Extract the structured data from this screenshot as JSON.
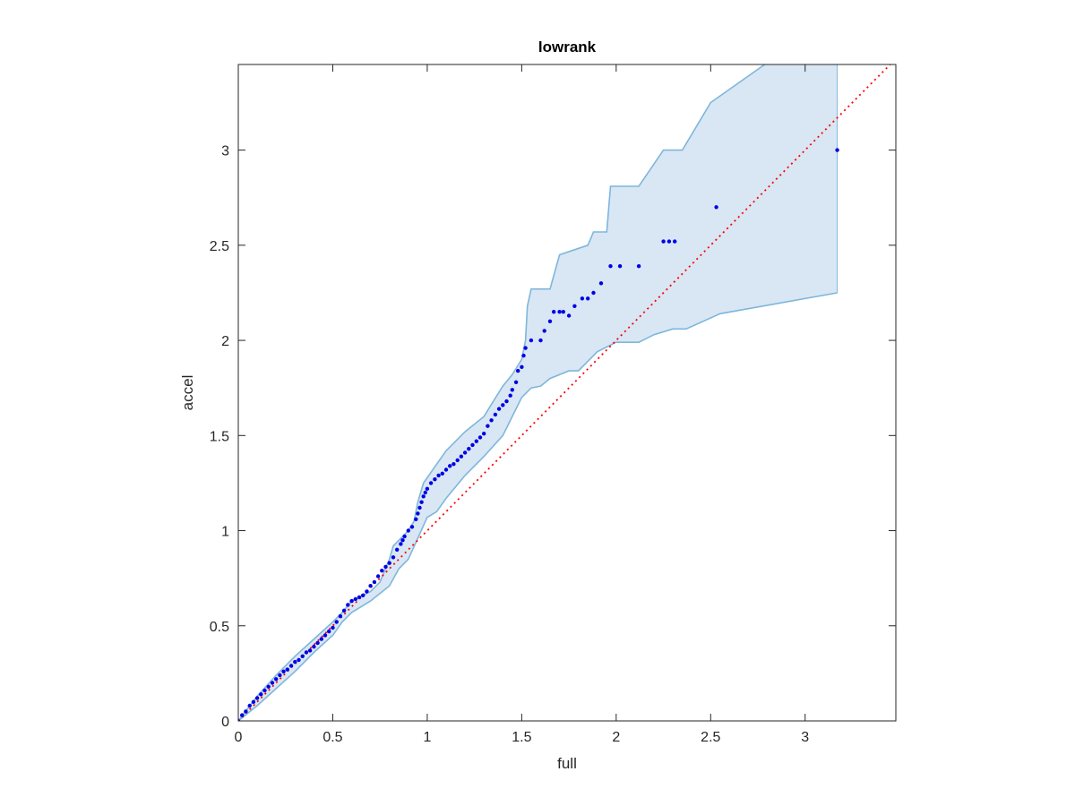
{
  "chart_data": {
    "type": "scatter",
    "title": "lowrank",
    "xlabel": "full",
    "ylabel": "accel",
    "xlim": [
      0,
      3.48
    ],
    "ylim": [
      0,
      3.45
    ],
    "xticks": [
      0,
      0.5,
      1,
      1.5,
      2,
      2.5,
      3
    ],
    "yticks": [
      0,
      0.5,
      1,
      1.5,
      2,
      2.5,
      3
    ],
    "xtick_labels": [
      "0",
      "0.5",
      "1",
      "1.5",
      "2",
      "2.5",
      "3"
    ],
    "ytick_labels": [
      "0",
      "0.5",
      "1",
      "1.5",
      "2",
      "2.5",
      "3"
    ],
    "grid": false,
    "colors": {
      "points": "#0000e6",
      "band_fill": "#d8e7f3",
      "band_edge": "#7fb6dc",
      "reference_line": "#ff0000",
      "axes": "#262626"
    },
    "reference_line": {
      "style": "dotted",
      "from": [
        0,
        0
      ],
      "to": [
        3.48,
        3.48
      ]
    },
    "confidence_band": {
      "upper": [
        [
          0,
          0
        ],
        [
          0.1,
          0.13
        ],
        [
          0.2,
          0.24
        ],
        [
          0.3,
          0.34
        ],
        [
          0.4,
          0.43
        ],
        [
          0.5,
          0.52
        ],
        [
          0.55,
          0.57
        ],
        [
          0.6,
          0.63
        ],
        [
          0.7,
          0.68
        ],
        [
          0.75,
          0.73
        ],
        [
          0.8,
          0.85
        ],
        [
          0.82,
          0.92
        ],
        [
          0.85,
          0.95
        ],
        [
          0.9,
          1.0
        ],
        [
          0.93,
          1.05
        ],
        [
          0.95,
          1.15
        ],
        [
          0.98,
          1.25
        ],
        [
          1.05,
          1.35
        ],
        [
          1.1,
          1.42
        ],
        [
          1.2,
          1.52
        ],
        [
          1.3,
          1.6
        ],
        [
          1.35,
          1.68
        ],
        [
          1.4,
          1.76
        ],
        [
          1.45,
          1.82
        ],
        [
          1.5,
          1.9
        ],
        [
          1.52,
          2.0
        ],
        [
          1.53,
          2.18
        ],
        [
          1.55,
          2.27
        ],
        [
          1.65,
          2.27
        ],
        [
          1.7,
          2.45
        ],
        [
          1.85,
          2.5
        ],
        [
          1.88,
          2.57
        ],
        [
          1.95,
          2.57
        ],
        [
          1.97,
          2.81
        ],
        [
          2.12,
          2.81
        ],
        [
          2.25,
          3.0
        ],
        [
          2.35,
          3.0
        ],
        [
          2.5,
          3.25
        ],
        [
          2.8,
          3.46
        ],
        [
          3.17,
          3.46
        ]
      ],
      "lower": [
        [
          0,
          0
        ],
        [
          0.1,
          0.08
        ],
        [
          0.2,
          0.17
        ],
        [
          0.3,
          0.26
        ],
        [
          0.4,
          0.36
        ],
        [
          0.5,
          0.45
        ],
        [
          0.55,
          0.52
        ],
        [
          0.6,
          0.57
        ],
        [
          0.7,
          0.63
        ],
        [
          0.8,
          0.71
        ],
        [
          0.85,
          0.8
        ],
        [
          0.9,
          0.85
        ],
        [
          1.0,
          1.07
        ],
        [
          1.05,
          1.1
        ],
        [
          1.1,
          1.17
        ],
        [
          1.2,
          1.29
        ],
        [
          1.3,
          1.39
        ],
        [
          1.4,
          1.5
        ],
        [
          1.45,
          1.6
        ],
        [
          1.5,
          1.7
        ],
        [
          1.55,
          1.75
        ],
        [
          1.6,
          1.76
        ],
        [
          1.65,
          1.8
        ],
        [
          1.75,
          1.84
        ],
        [
          1.8,
          1.84
        ],
        [
          1.85,
          1.89
        ],
        [
          1.9,
          1.94
        ],
        [
          2.0,
          1.99
        ],
        [
          2.12,
          1.99
        ],
        [
          2.2,
          2.03
        ],
        [
          2.3,
          2.06
        ],
        [
          2.37,
          2.06
        ],
        [
          2.55,
          2.14
        ],
        [
          3.17,
          2.25
        ]
      ]
    },
    "series": [
      {
        "x": [
          0,
          0.02,
          0.04,
          0.06,
          0.08,
          0.1,
          0.12,
          0.14,
          0.16,
          0.18,
          0.2,
          0.22,
          0.24,
          0.26,
          0.28,
          0.3,
          0.32,
          0.34,
          0.36,
          0.38,
          0.4,
          0.42,
          0.44,
          0.46,
          0.48,
          0.5,
          0.52,
          0.54,
          0.56,
          0.58,
          0.6,
          0.62,
          0.64,
          0.66,
          0.68,
          0.7,
          0.72,
          0.74,
          0.76,
          0.78,
          0.8,
          0.82,
          0.84,
          0.86,
          0.87,
          0.88,
          0.9,
          0.92,
          0.94,
          0.95,
          0.96,
          0.97,
          0.98,
          0.99,
          1.0,
          1.02,
          1.04,
          1.06,
          1.08,
          1.1,
          1.12,
          1.14,
          1.16,
          1.18,
          1.2,
          1.22,
          1.24,
          1.26,
          1.28,
          1.3,
          1.32,
          1.34,
          1.36,
          1.38,
          1.4,
          1.42,
          1.44,
          1.45,
          1.47,
          1.48,
          1.5,
          1.51,
          1.52,
          1.55,
          1.6,
          1.62,
          1.65,
          1.67,
          1.7,
          1.72,
          1.75,
          1.78,
          1.82,
          1.85,
          1.88,
          1.92,
          1.97,
          2.02,
          2.12,
          2.25,
          2.28,
          2.31,
          2.53,
          3.17
        ],
        "y": [
          0,
          0.03,
          0.05,
          0.08,
          0.1,
          0.12,
          0.14,
          0.16,
          0.18,
          0.2,
          0.22,
          0.24,
          0.26,
          0.27,
          0.29,
          0.31,
          0.32,
          0.34,
          0.36,
          0.37,
          0.39,
          0.41,
          0.43,
          0.45,
          0.47,
          0.49,
          0.52,
          0.55,
          0.58,
          0.61,
          0.63,
          0.64,
          0.65,
          0.66,
          0.68,
          0.71,
          0.73,
          0.76,
          0.79,
          0.81,
          0.83,
          0.86,
          0.9,
          0.93,
          0.95,
          0.97,
          1.0,
          1.02,
          1.06,
          1.09,
          1.12,
          1.15,
          1.18,
          1.2,
          1.22,
          1.25,
          1.27,
          1.29,
          1.3,
          1.32,
          1.34,
          1.35,
          1.37,
          1.39,
          1.41,
          1.43,
          1.45,
          1.47,
          1.49,
          1.51,
          1.55,
          1.58,
          1.61,
          1.64,
          1.66,
          1.68,
          1.71,
          1.74,
          1.78,
          1.84,
          1.86,
          1.92,
          1.96,
          2.0,
          2.0,
          2.05,
          2.1,
          2.15,
          2.15,
          2.15,
          2.13,
          2.18,
          2.22,
          2.22,
          2.25,
          2.3,
          2.39,
          2.39,
          2.39,
          2.52,
          2.52,
          2.52,
          2.7,
          3.0
        ]
      }
    ]
  }
}
